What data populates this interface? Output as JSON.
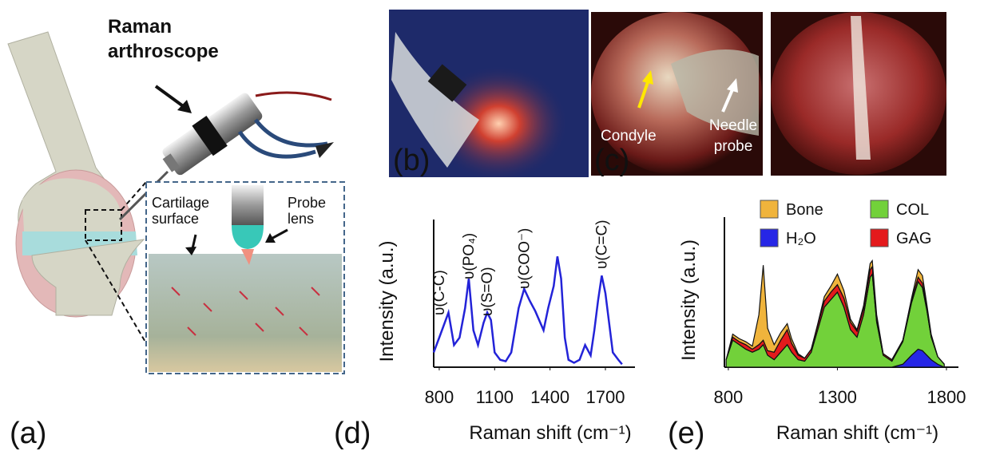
{
  "figure": {
    "panel_labels": [
      "(a)",
      "(b)",
      "(c)",
      "(d)",
      "(e)"
    ],
    "panel_a": {
      "title": "Raman arthroscope",
      "labels": [
        "Cartilage surface",
        "Probe lens"
      ]
    },
    "panel_c": {
      "labels": [
        "Condyle",
        "Needle probe"
      ]
    }
  },
  "chart_data": [
    {
      "type": "line",
      "xlabel": "Raman shift (cm⁻¹)",
      "ylabel": "Intensity (a.u.)",
      "color": "#2323d8",
      "x": [
        770,
        800,
        850,
        880,
        910,
        940,
        960,
        985,
        1010,
        1040,
        1060,
        1080,
        1100,
        1130,
        1160,
        1190,
        1230,
        1260,
        1290,
        1320,
        1365,
        1390,
        1420,
        1440,
        1460,
        1480,
        1500,
        1530,
        1560,
        1590,
        1620,
        1640,
        1660,
        1680,
        1700,
        1720,
        1740,
        1770,
        1790
      ],
      "values": [
        0.1,
        0.2,
        0.37,
        0.15,
        0.2,
        0.4,
        0.6,
        0.25,
        0.15,
        0.3,
        0.37,
        0.32,
        0.1,
        0.05,
        0.04,
        0.1,
        0.4,
        0.53,
        0.45,
        0.38,
        0.25,
        0.4,
        0.55,
        0.75,
        0.6,
        0.2,
        0.05,
        0.03,
        0.05,
        0.15,
        0.08,
        0.25,
        0.45,
        0.62,
        0.5,
        0.3,
        0.1,
        0.05,
        0.02
      ],
      "xlim": [
        770,
        1860
      ],
      "xticks": [
        800,
        1100,
        1400,
        1700
      ],
      "ylim": [
        0,
        1
      ],
      "annotations": [
        "υ(C-C)",
        "υ(PO₄)",
        "υ(S=O)",
        "υ(COO⁻)",
        "υ(C=C)"
      ]
    },
    {
      "type": "area",
      "stacked": true,
      "xlabel": "Raman shift (cm⁻¹)",
      "ylabel": "Intensity (a.u.)",
      "legend": "top",
      "x": [
        790,
        820,
        850,
        880,
        910,
        940,
        960,
        980,
        1010,
        1040,
        1070,
        1090,
        1120,
        1150,
        1180,
        1210,
        1240,
        1270,
        1300,
        1330,
        1360,
        1390,
        1420,
        1450,
        1460,
        1480,
        1510,
        1550,
        1600,
        1640,
        1670,
        1690,
        1710,
        1730,
        1760,
        1790
      ],
      "series": [
        {
          "name": "Bone",
          "color": "#f0b43c",
          "values": [
            0,
            0.02,
            0.02,
            0.02,
            0.02,
            0.2,
            0.5,
            0.15,
            0.05,
            0.05,
            0.04,
            0.03,
            0.01,
            0,
            0,
            0.01,
            0.03,
            0.04,
            0.07,
            0.05,
            0.02,
            0.01,
            0.02,
            0.04,
            0.04,
            0.02,
            0,
            0,
            0,
            0.01,
            0.05,
            0.05,
            0.02,
            0.01,
            0,
            0
          ]
        },
        {
          "name": "COL",
          "color": "#72d13a",
          "values": [
            0.05,
            0.18,
            0.15,
            0.12,
            0.1,
            0.12,
            0.15,
            0.08,
            0.05,
            0.1,
            0.15,
            0.1,
            0.05,
            0.04,
            0.1,
            0.25,
            0.4,
            0.45,
            0.5,
            0.4,
            0.25,
            0.2,
            0.35,
            0.6,
            0.62,
            0.3,
            0.08,
            0.04,
            0.15,
            0.35,
            0.45,
            0.42,
            0.3,
            0.15,
            0.05,
            0.02
          ]
        },
        {
          "name": "H₂O",
          "color": "#2626e6",
          "values": [
            0,
            0,
            0,
            0,
            0,
            0,
            0,
            0,
            0,
            0,
            0,
            0,
            0,
            0,
            0,
            0,
            0,
            0,
            0,
            0,
            0,
            0,
            0,
            0,
            0,
            0,
            0,
            0,
            0.02,
            0.08,
            0.12,
            0.11,
            0.08,
            0.05,
            0.02,
            0
          ]
        },
        {
          "name": "GAG",
          "color": "#e41a1c",
          "values": [
            0,
            0.02,
            0.02,
            0.03,
            0.02,
            0.03,
            0.03,
            0.03,
            0.05,
            0.08,
            0.1,
            0.06,
            0.03,
            0.02,
            0.02,
            0.03,
            0.04,
            0.05,
            0.05,
            0.06,
            0.05,
            0.04,
            0.04,
            0.05,
            0.05,
            0.03,
            0.01,
            0.01,
            0.01,
            0.02,
            0.03,
            0.03,
            0.02,
            0.01,
            0,
            0
          ]
        }
      ],
      "xlim": [
        782,
        1855
      ],
      "xticks": [
        800,
        1300,
        1800
      ],
      "ylim": [
        0,
        1
      ]
    }
  ]
}
